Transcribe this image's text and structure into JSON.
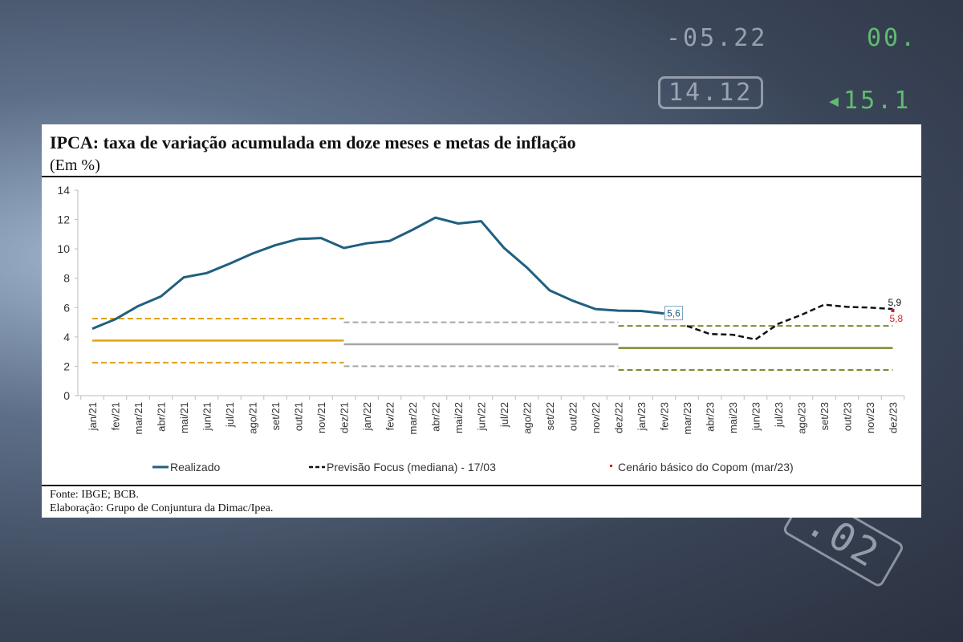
{
  "chart_data": {
    "type": "line",
    "title": "IPCA: taxa de variação acumulada em doze meses e metas de inflação",
    "subtitle": "(Em %)",
    "ylim": [
      0,
      14
    ],
    "yticks": [
      0,
      2,
      4,
      6,
      8,
      10,
      12,
      14
    ],
    "grid": false,
    "legend_position": "bottom",
    "categories": [
      "jan/21",
      "fev/21",
      "mar/21",
      "abr/21",
      "mai/21",
      "jun/21",
      "jul/21",
      "ago/21",
      "set/21",
      "out/21",
      "nov/21",
      "dez/21",
      "jan/22",
      "fev/22",
      "mar/22",
      "abr/22",
      "mai/22",
      "jun/22",
      "jul/22",
      "ago/22",
      "set/22",
      "out/22",
      "nov/22",
      "dez/22",
      "jan/23",
      "fev/23",
      "mar/23",
      "abr/23",
      "mai/23",
      "jun/23",
      "jul/23",
      "ago/23",
      "set/23",
      "out/23",
      "nov/23",
      "dez/23"
    ],
    "series": [
      {
        "name": "Realizado",
        "color": "#1f5f80",
        "style": "solid",
        "values": [
          4.56,
          5.2,
          6.1,
          6.76,
          8.06,
          8.35,
          8.99,
          9.68,
          10.25,
          10.67,
          10.74,
          10.06,
          10.38,
          10.54,
          11.3,
          12.13,
          11.73,
          11.89,
          10.07,
          8.73,
          7.17,
          6.47,
          5.9,
          5.79,
          5.77,
          5.6,
          null,
          null,
          null,
          null,
          null,
          null,
          null,
          null,
          null,
          null
        ],
        "end_label": "5,6"
      },
      {
        "name": "Previsão Focus (mediana) - 17/03",
        "color": "#111111",
        "style": "dashed",
        "values": [
          null,
          null,
          null,
          null,
          null,
          null,
          null,
          null,
          null,
          null,
          null,
          null,
          null,
          null,
          null,
          null,
          null,
          null,
          null,
          null,
          null,
          null,
          null,
          null,
          null,
          null,
          4.75,
          4.2,
          4.15,
          3.83,
          4.9,
          5.5,
          6.2,
          6.05,
          6.0,
          5.9
        ],
        "end_label": "5,9"
      },
      {
        "name": "Cenário básico do Copom (mar/23)",
        "color": "#d0202a",
        "style": "point",
        "points": [
          {
            "x": "dez/23",
            "y": 5.8
          }
        ],
        "end_label": "5,8"
      }
    ],
    "targets": [
      {
        "year": "2021",
        "center": 3.75,
        "lower": 2.25,
        "upper": 5.25,
        "from": "jan/21",
        "to": "dez/21",
        "color": "#e0a21c"
      },
      {
        "year": "2022",
        "center": 3.5,
        "lower": 2.0,
        "upper": 5.0,
        "from": "dez/21",
        "to": "dez/22",
        "color": "#a6a6a6"
      },
      {
        "year": "2023",
        "center": 3.25,
        "lower": 1.75,
        "upper": 4.75,
        "from": "dez/22",
        "to": "dez/23",
        "color": "#7a8c2e"
      }
    ]
  },
  "footer": {
    "source": "Fonte: IBGE; BCB.",
    "elaboration": "Elaboração: Grupo de Conjuntura da Dimac/Ipea."
  }
}
